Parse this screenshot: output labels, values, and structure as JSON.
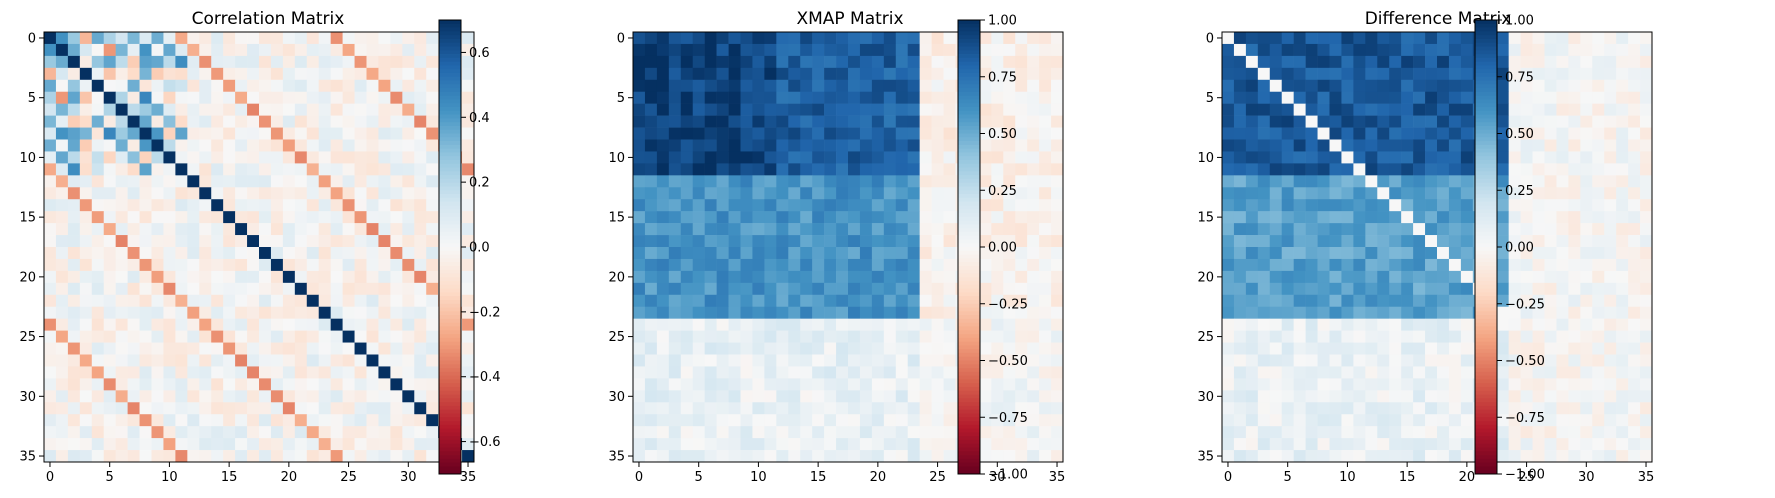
{
  "colormap": {
    "name": "RdBu",
    "stops": [
      "#67001f",
      "#b2182b",
      "#d6604d",
      "#f4a582",
      "#fddbc7",
      "#f7f7f7",
      "#d1e5f0",
      "#92c5de",
      "#4393c3",
      "#2166ac",
      "#053061"
    ]
  },
  "chart_data": [
    {
      "type": "heatmap",
      "title": "Correlation Matrix",
      "size": 36,
      "xticks": [
        0,
        5,
        10,
        15,
        20,
        25,
        30,
        35
      ],
      "yticks": [
        0,
        5,
        10,
        15,
        20,
        25,
        30,
        35
      ],
      "vmin": -0.7,
      "vmax": 0.7,
      "colorbar_ticks": [
        -0.6,
        -0.4,
        -0.2,
        0.0,
        0.2,
        0.4,
        0.6
      ],
      "colorbar_tick_labels": [
        "−0.6",
        "−0.4",
        "−0.2",
        "0.0",
        "0.2",
        "0.4",
        "0.6"
      ],
      "structure": {
        "diagonal": 0.7,
        "top_left_block": [
          0,
          11
        ],
        "top_left_block_magnitude": 0.35,
        "negative_off_diagonal_offsets": [
          11,
          24
        ],
        "negative_off_diagonal_value": -0.3,
        "noise_magnitude": 0.1,
        "seed": 7
      }
    },
    {
      "type": "heatmap",
      "title": "XMAP Matrix",
      "size": 36,
      "xticks": [
        0,
        5,
        10,
        15,
        20,
        25,
        30,
        35
      ],
      "yticks": [
        0,
        5,
        10,
        15,
        20,
        25,
        30,
        35
      ],
      "vmin": -1.0,
      "vmax": 1.0,
      "colorbar_ticks": [
        -1.0,
        -0.75,
        -0.5,
        -0.25,
        0.0,
        0.25,
        0.5,
        0.75,
        1.0
      ],
      "colorbar_tick_labels": [
        "−1.00",
        "−0.75",
        "−0.50",
        "−0.25",
        "0.00",
        "0.25",
        "0.50",
        "0.75",
        "1.00"
      ],
      "blocks": [
        {
          "rows": [
            0,
            11
          ],
          "cols": [
            0,
            11
          ],
          "value": 0.93
        },
        {
          "rows": [
            0,
            11
          ],
          "cols": [
            12,
            23
          ],
          "value": 0.82
        },
        {
          "rows": [
            0,
            11
          ],
          "cols": [
            24,
            35
          ],
          "value": -0.05
        },
        {
          "rows": [
            12,
            23
          ],
          "cols": [
            0,
            23
          ],
          "value": 0.6
        },
        {
          "rows": [
            12,
            23
          ],
          "cols": [
            24,
            35
          ],
          "value": -0.04
        },
        {
          "rows": [
            24,
            35
          ],
          "cols": [
            0,
            23
          ],
          "value": 0.08
        },
        {
          "rows": [
            24,
            35
          ],
          "cols": [
            24,
            35
          ],
          "value": 0.01
        }
      ],
      "noise_magnitude": 0.1,
      "seed": 13
    },
    {
      "type": "heatmap",
      "title": "Difference Matrix",
      "size": 36,
      "xticks": [
        0,
        5,
        10,
        15,
        20,
        25,
        30,
        35
      ],
      "yticks": [
        0,
        5,
        10,
        15,
        20,
        25,
        30,
        35
      ],
      "vmin": -1.0,
      "vmax": 1.0,
      "colorbar_ticks": [
        -1.0,
        -0.75,
        -0.5,
        -0.25,
        0.0,
        0.25,
        0.5,
        0.75,
        1.0
      ],
      "colorbar_tick_labels": [
        "−1.00",
        "−0.75",
        "−0.50",
        "−0.25",
        "0.00",
        "0.25",
        "0.50",
        "0.75",
        "1.00"
      ],
      "blocks": [
        {
          "rows": [
            0,
            11
          ],
          "cols": [
            0,
            11
          ],
          "value": 0.85
        },
        {
          "rows": [
            0,
            11
          ],
          "cols": [
            12,
            23
          ],
          "value": 0.85
        },
        {
          "rows": [
            0,
            11
          ],
          "cols": [
            24,
            35
          ],
          "value": 0.0
        },
        {
          "rows": [
            12,
            23
          ],
          "cols": [
            0,
            23
          ],
          "value": 0.55
        },
        {
          "rows": [
            12,
            23
          ],
          "cols": [
            24,
            35
          ],
          "value": 0.0
        },
        {
          "rows": [
            24,
            35
          ],
          "cols": [
            0,
            23
          ],
          "value": 0.07
        },
        {
          "rows": [
            24,
            35
          ],
          "cols": [
            24,
            35
          ],
          "value": 0.0
        }
      ],
      "diagonal_value": 0.0,
      "diagonal_range": [
        0,
        23
      ],
      "noise_magnitude": 0.1,
      "seed": 29
    }
  ]
}
